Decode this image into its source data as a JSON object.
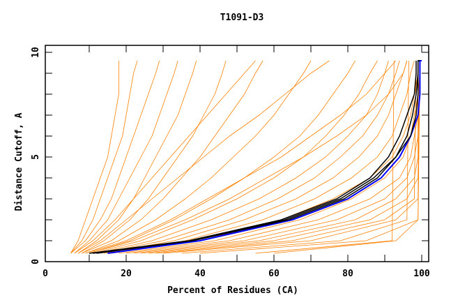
{
  "chart_data": {
    "type": "line",
    "title": "T1091-D3",
    "xlabel": "Percent of Residues (CA)",
    "ylabel": "Distance Cutoff, A",
    "xlim": [
      -2,
      102
    ],
    "ylim": [
      0,
      10.3
    ],
    "xticks": [
      "0",
      "20",
      "40",
      "60",
      "80",
      "100"
    ],
    "yticks": [
      "0",
      "5",
      "10"
    ],
    "grid": false,
    "colors": {
      "models": "#ff8000",
      "highlight_black": "#000000",
      "highlight_blue": "#0000ff"
    },
    "y_levels": [
      0.4,
      1,
      2,
      3,
      4,
      5,
      6,
      7,
      8,
      9,
      9.6
    ],
    "orange_series_x": [
      [
        5,
        8,
        11,
        13,
        15,
        17,
        19,
        20,
        21,
        22,
        23
      ],
      [
        5,
        9,
        13,
        16,
        18,
        20,
        22,
        24,
        26,
        28,
        29
      ],
      [
        6,
        10,
        15,
        18,
        21,
        24,
        27,
        29,
        31,
        33,
        34
      ],
      [
        7,
        12,
        18,
        22,
        25,
        28,
        31,
        34,
        36,
        38,
        39
      ],
      [
        8,
        14,
        21,
        26,
        30,
        34,
        38,
        41,
        44,
        46,
        47
      ],
      [
        8,
        16,
        24,
        30,
        35,
        40,
        44,
        48,
        52,
        55,
        57
      ],
      [
        9,
        18,
        28,
        36,
        43,
        49,
        55,
        60,
        64,
        68,
        70
      ],
      [
        10,
        21,
        33,
        43,
        52,
        60,
        67,
        72,
        76,
        80,
        82
      ],
      [
        11,
        24,
        38,
        50,
        60,
        68,
        74,
        79,
        83,
        86,
        88
      ],
      [
        12,
        27,
        43,
        56,
        66,
        74,
        80,
        85,
        88,
        90,
        91
      ],
      [
        13,
        30,
        48,
        61,
        71,
        78,
        84,
        88,
        91,
        93,
        94
      ],
      [
        14,
        33,
        52,
        66,
        76,
        83,
        88,
        91,
        93,
        95,
        96
      ],
      [
        15,
        36,
        57,
        71,
        81,
        88,
        92,
        94,
        96,
        97,
        98
      ],
      [
        16,
        40,
        62,
        76,
        86,
        92,
        95,
        97,
        98,
        99,
        99
      ],
      [
        18,
        44,
        67,
        81,
        90,
        95,
        97,
        98,
        99,
        99.5,
        99.5
      ],
      [
        20,
        48,
        72,
        86,
        94,
        97,
        98,
        99,
        99.5,
        99.5,
        99.5
      ],
      [
        22,
        52,
        77,
        90,
        96,
        98,
        99,
        99,
        99,
        99,
        99
      ],
      [
        24,
        56,
        82,
        93,
        98,
        99,
        99
      ],
      [
        26,
        60,
        86,
        96,
        99
      ],
      [
        28,
        65,
        90,
        98
      ],
      [
        30,
        70,
        93,
        99
      ],
      [
        35,
        78,
        96
      ],
      [
        40,
        85,
        99
      ],
      [
        55,
        92
      ],
      [
        60,
        93,
        99
      ],
      [
        5,
        7,
        9,
        11,
        13,
        15,
        16,
        17,
        18,
        18,
        18
      ],
      [
        6,
        11,
        17,
        22,
        27,
        32,
        37,
        42,
        47,
        52,
        55
      ],
      [
        9,
        20,
        32,
        42,
        52,
        62,
        70,
        78,
        85,
        90,
        93
      ],
      [
        7,
        13,
        20,
        27,
        34,
        41,
        48,
        56,
        63,
        70,
        75
      ],
      [
        10,
        22,
        36,
        48,
        58,
        68,
        77,
        85,
        91,
        95,
        96
      ]
    ],
    "black_series_x": [
      [
        10,
        37,
        62,
        77,
        86,
        91,
        94,
        96,
        98,
        98.5,
        98.5
      ],
      [
        12,
        38,
        63,
        78,
        87,
        93,
        96,
        97.5,
        98.5,
        99,
        99
      ],
      [
        11,
        38,
        64,
        79,
        88,
        93,
        97,
        98.5,
        99,
        99,
        99
      ]
    ],
    "blue_series_x": [
      [
        15,
        40,
        65,
        80,
        89,
        94,
        97,
        99,
        99.5,
        99.5,
        99.5
      ]
    ]
  }
}
